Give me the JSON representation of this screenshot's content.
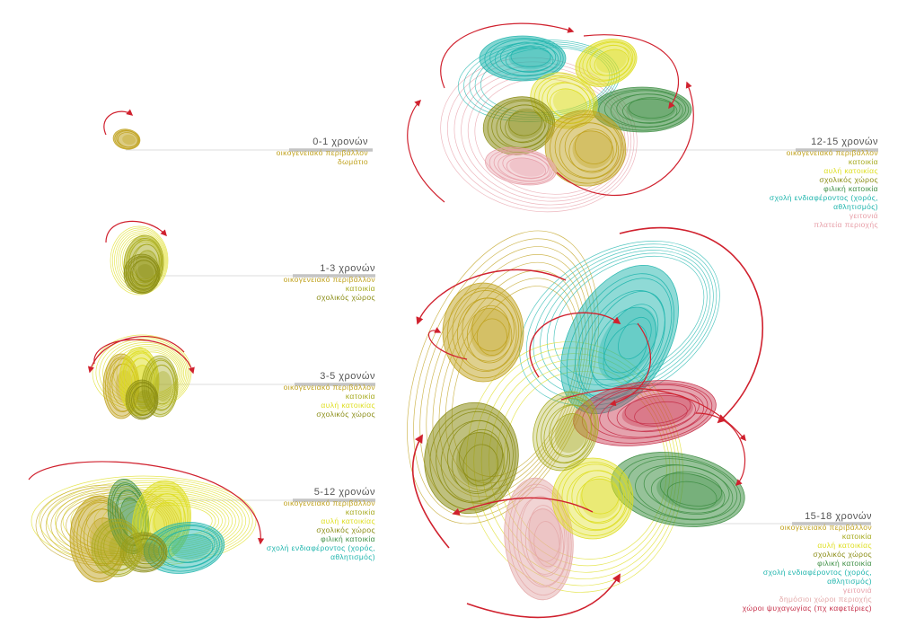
{
  "colors": {
    "family": "#c0a21e",
    "home": "#a6aa1e",
    "yard": "#dede1e",
    "school": "#8a8c14",
    "friend": "#3f8f45",
    "activity": "#1fb5ad",
    "neighborhood": "#e79fa8",
    "public": "#e4a9a9",
    "leisure": "#c6314a",
    "arrow": "#d0212e",
    "rule": "#c4c4c4",
    "title": "#555555"
  },
  "stages": [
    {
      "title": "0-1 χρονών",
      "lines": [
        {
          "text": "οικογενειακό περιβάλλον",
          "color": "family"
        },
        {
          "text": "δωμάτιο",
          "color": "family"
        }
      ]
    },
    {
      "title": "1-3 χρονών",
      "lines": [
        {
          "text": "οικογενειακό περιβάλλον",
          "color": "family"
        },
        {
          "text": "κατοικία",
          "color": "home"
        },
        {
          "text": "σχολικός χώρος",
          "color": "school"
        }
      ]
    },
    {
      "title": "3-5 χρονών",
      "lines": [
        {
          "text": "οικογενειακό περιβάλλον",
          "color": "family"
        },
        {
          "text": "κατοικία",
          "color": "home"
        },
        {
          "text": "αυλή κατοικίας",
          "color": "yard"
        },
        {
          "text": "σχολικός χώρος",
          "color": "school"
        }
      ]
    },
    {
      "title": "5-12 χρονών",
      "lines": [
        {
          "text": "οικογενειακό περιβάλλον",
          "color": "family"
        },
        {
          "text": "κατοικία",
          "color": "home"
        },
        {
          "text": "αυλή κατοικίας",
          "color": "yard"
        },
        {
          "text": "σχολικός χώρος",
          "color": "school"
        },
        {
          "text": "φιλική κατοικία",
          "color": "friend"
        },
        {
          "text": "σχολή ενδιαφέροντος (χορός,",
          "color": "activity"
        },
        {
          "text": "αθλητισμός)",
          "color": "activity"
        }
      ]
    },
    {
      "title": "12-15 χρονών",
      "lines": [
        {
          "text": "οικογενειακό περιβάλλον",
          "color": "family"
        },
        {
          "text": "κατοικία",
          "color": "home"
        },
        {
          "text": "αυλή κατοικίας",
          "color": "yard"
        },
        {
          "text": "σχολικός χώρος",
          "color": "school"
        },
        {
          "text": "φιλική κατοικία",
          "color": "friend"
        },
        {
          "text": "σχολή ενδιαφέροντος (χορός,",
          "color": "activity"
        },
        {
          "text": "αθλητισμός)",
          "color": "activity"
        },
        {
          "text": "γειτονιά",
          "color": "neighborhood"
        },
        {
          "text": "πλατεία περιοχής",
          "color": "neighborhood"
        }
      ]
    },
    {
      "title": "15-18 χρονών",
      "lines": [
        {
          "text": "οικογενειακό περιβάλλον",
          "color": "family"
        },
        {
          "text": "κατοικία",
          "color": "home"
        },
        {
          "text": "αυλή κατοικίας",
          "color": "yard"
        },
        {
          "text": "σχολικός χώρος",
          "color": "school"
        },
        {
          "text": "φιλική κατοικία",
          "color": "friend"
        },
        {
          "text": "σχολή ενδιαφέροντος (χορός,",
          "color": "activity"
        },
        {
          "text": "αθλητισμός)",
          "color": "activity"
        },
        {
          "text": "γειτονιά",
          "color": "neighborhood"
        },
        {
          "text": "δημόσιοι χώροι περιοχής",
          "color": "public"
        },
        {
          "text": "χώροι ψυχαγωγίας (πχ καφετέριες)",
          "color": "leisure"
        }
      ]
    }
  ]
}
